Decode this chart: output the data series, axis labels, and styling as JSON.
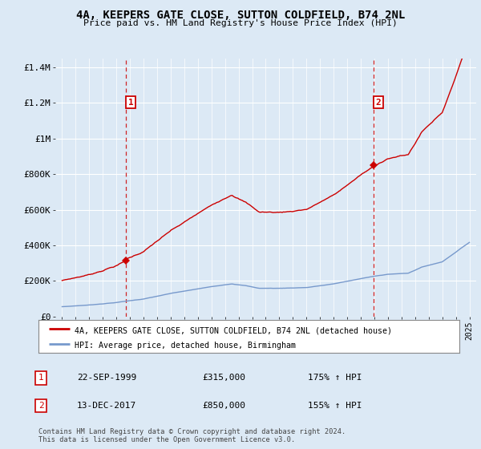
{
  "title": "4A, KEEPERS GATE CLOSE, SUTTON COLDFIELD, B74 2NL",
  "subtitle": "Price paid vs. HM Land Registry's House Price Index (HPI)",
  "sale1_year": 1999.72,
  "sale1_price": 315000,
  "sale1_label": "1",
  "sale1_date": "22-SEP-1999",
  "sale2_year": 2017.95,
  "sale2_price": 850000,
  "sale2_label": "2",
  "sale2_date": "13-DEC-2017",
  "ylim": [
    0,
    1450000
  ],
  "xlim": [
    1994.5,
    2025.5
  ],
  "property_color": "#cc0000",
  "hpi_color": "#7799cc",
  "vline_color": "#cc0000",
  "background_color": "#dce9f5",
  "plot_bg_color": "#dce9f5",
  "grid_color": "#ffffff",
  "legend_label_property": "4A, KEEPERS GATE CLOSE, SUTTON COLDFIELD, B74 2NL (detached house)",
  "legend_label_hpi": "HPI: Average price, detached house, Birmingham",
  "footer": "Contains HM Land Registry data © Crown copyright and database right 2024.\nThis data is licensed under the Open Government Licence v3.0.",
  "yticks": [
    0,
    200000,
    400000,
    600000,
    800000,
    1000000,
    1200000,
    1400000
  ],
  "ytick_labels": [
    "£0",
    "£200K",
    "£400K",
    "£600K",
    "£800K",
    "£1M",
    "£1.2M",
    "£1.4M"
  ],
  "sale1_hpi_label": "175% ↑ HPI",
  "sale2_hpi_label": "155% ↑ HPI"
}
